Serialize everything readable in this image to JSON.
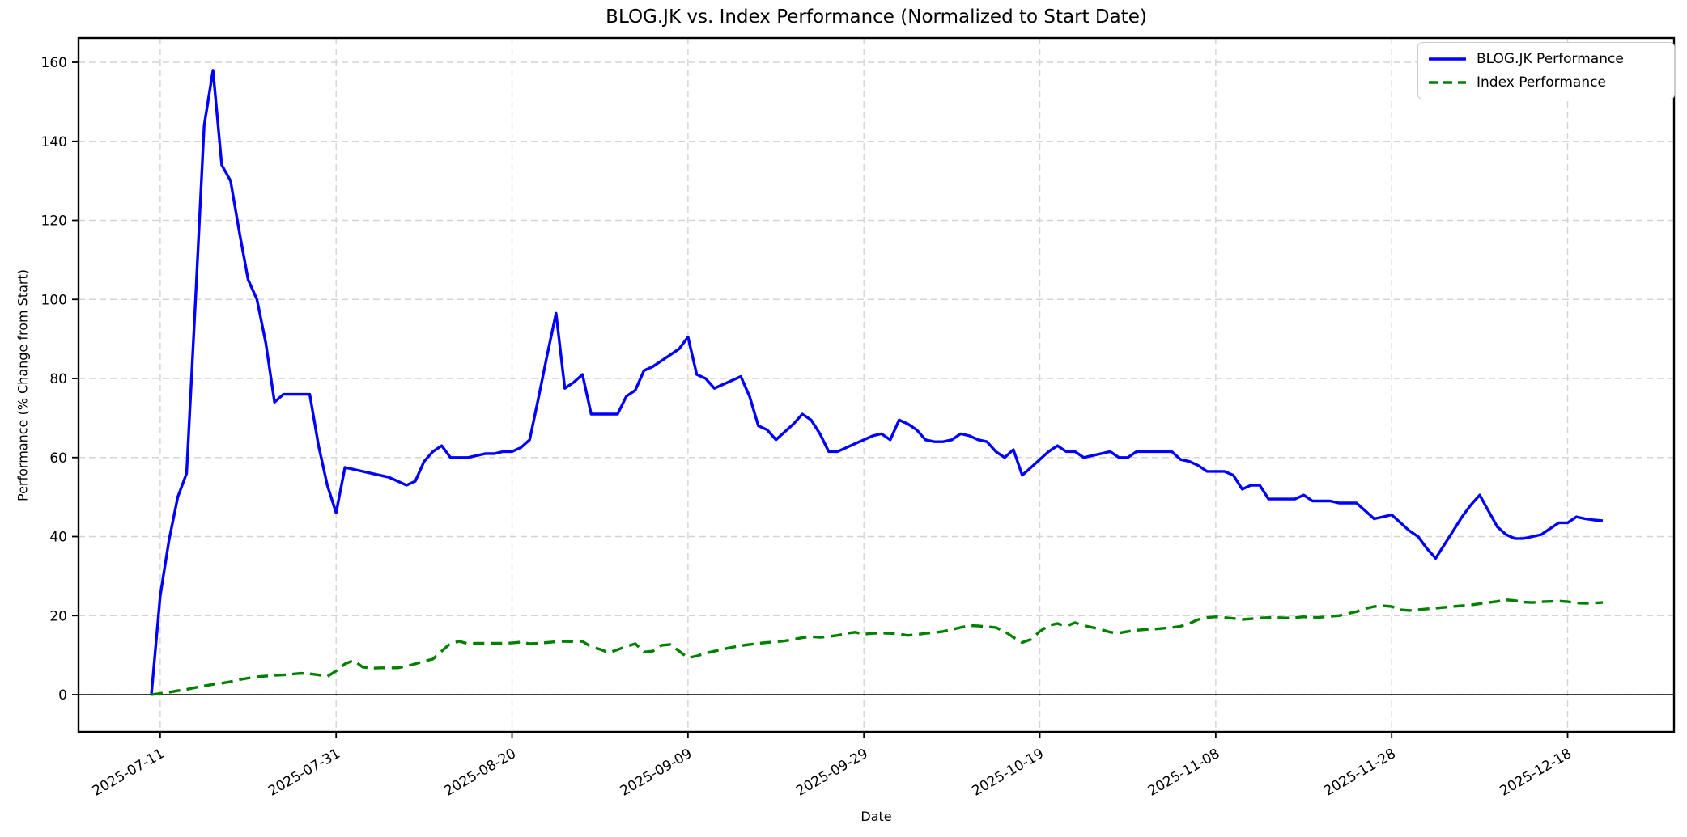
{
  "chart_data": {
    "type": "line",
    "title": "BLOG.JK vs. Index Performance (Normalized to Start Date)",
    "xlabel": "Date",
    "ylabel": "Performance (% Change from Start)",
    "x_start_date": "2025-07-10",
    "x_interval": "daily",
    "xtick_labels": [
      "2025-07-11",
      "2025-07-31",
      "2025-08-20",
      "2025-09-09",
      "2025-09-29",
      "2025-10-19",
      "2025-11-08",
      "2025-11-28",
      "2025-12-18"
    ],
    "ytick_values": [
      0,
      20,
      40,
      60,
      80,
      100,
      120,
      140,
      160
    ],
    "ylim": [
      -9,
      166
    ],
    "grid": true,
    "grid_color": "#d4d4d4",
    "legend_position": "upper right",
    "axhline_y": 0,
    "series": [
      {
        "name": "BLOG.JK Performance",
        "color": "#0000ff",
        "line_style": "solid",
        "values": [
          0,
          25,
          39,
          50,
          56,
          99,
          144,
          158,
          134,
          130,
          117,
          105,
          100,
          89,
          74,
          76,
          76,
          76,
          76,
          63,
          53,
          46,
          57.5,
          57,
          56.5,
          56,
          55.5,
          55,
          54,
          53,
          54,
          59,
          61.5,
          63,
          60,
          60,
          60,
          60.5,
          61,
          61,
          61.5,
          61.5,
          62.5,
          64.5,
          75,
          86,
          96.5,
          77.5,
          79,
          81,
          71,
          71,
          71,
          71,
          75.5,
          77,
          82,
          83,
          84.5,
          86,
          87.5,
          90.5,
          81,
          80,
          77.5,
          78.5,
          79.5,
          80.5,
          75.5,
          68,
          67,
          64.5,
          66.5,
          68.5,
          71,
          69.5,
          66,
          61.5,
          61.5,
          62.5,
          63.5,
          64.5,
          65.5,
          66,
          64.5,
          69.5,
          68.5,
          67,
          64.5,
          64,
          64,
          64.5,
          66,
          65.5,
          64.5,
          64,
          61.5,
          60,
          62,
          55.5,
          57.5,
          59.5,
          61.5,
          63,
          61.5,
          61.5,
          60,
          60.5,
          61,
          61.5,
          60,
          60,
          61.5,
          61.5,
          61.5,
          61.5,
          61.5,
          59.5,
          59,
          58,
          56.5,
          56.5,
          56.5,
          55.5,
          52,
          53,
          53,
          49.5,
          49.5,
          49.5,
          49.5,
          50.5,
          49,
          49,
          49,
          48.5,
          48.5,
          48.5,
          46.5,
          44.5,
          45,
          45.5,
          43.5,
          41.5,
          40,
          37,
          34.5,
          38,
          41.5,
          45,
          48,
          50.5,
          46.5,
          42.5,
          40.5,
          39.5,
          39.5,
          40,
          40.5,
          42,
          43.5,
          43.5,
          45,
          44.5,
          44.2,
          44
        ]
      },
      {
        "name": "Index Performance",
        "color": "#008000",
        "line_style": "dashed",
        "values": [
          0,
          0.3,
          0.6,
          1.0,
          1.3,
          1.8,
          2.2,
          2.6,
          2.9,
          3.3,
          3.8,
          4.2,
          4.5,
          4.7,
          4.9,
          5.0,
          5.2,
          5.4,
          5.3,
          5.0,
          4.6,
          6.0,
          7.8,
          8.7,
          7.0,
          6.7,
          6.8,
          6.8,
          6.8,
          7.2,
          7.8,
          8.5,
          9.0,
          11.0,
          13.0,
          13.5,
          12.9,
          13.0,
          13.0,
          13.0,
          13.0,
          13.1,
          13.3,
          12.9,
          13.0,
          13.2,
          13.4,
          13.5,
          13.4,
          13.5,
          12.1,
          11.5,
          10.6,
          11.4,
          12.2,
          12.9,
          10.8,
          11.0,
          12.5,
          12.7,
          11.0,
          9.3,
          9.8,
          10.5,
          11.0,
          11.5,
          12.0,
          12.4,
          12.7,
          13.0,
          13.2,
          13.4,
          13.6,
          14.0,
          14.4,
          14.7,
          14.5,
          14.7,
          15.0,
          15.5,
          15.8,
          15.3,
          15.5,
          15.6,
          15.5,
          15.3,
          15.0,
          15.2,
          15.5,
          15.7,
          16.0,
          16.5,
          17.0,
          17.5,
          17.4,
          17.2,
          17.0,
          16.0,
          14.5,
          13.2,
          14.0,
          16.0,
          17.5,
          18.0,
          17.3,
          18.2,
          17.5,
          17.0,
          16.5,
          15.8,
          15.6,
          16.0,
          16.3,
          16.5,
          16.6,
          16.8,
          17.0,
          17.3,
          18.0,
          19.0,
          19.5,
          19.7,
          19.5,
          19.3,
          19.0,
          19.2,
          19.4,
          19.5,
          19.5,
          19.4,
          19.5,
          19.7,
          19.5,
          19.6,
          19.8,
          20.0,
          20.5,
          21.0,
          21.8,
          22.3,
          22.5,
          22.3,
          21.5,
          21.3,
          21.5,
          21.7,
          21.9,
          22.1,
          22.3,
          22.5,
          22.7,
          23.0,
          23.3,
          23.6,
          24.0,
          23.8,
          23.4,
          23.3,
          23.5,
          23.6,
          23.7,
          23.5,
          23.2,
          23.1,
          23.2,
          23.3
        ]
      }
    ]
  }
}
